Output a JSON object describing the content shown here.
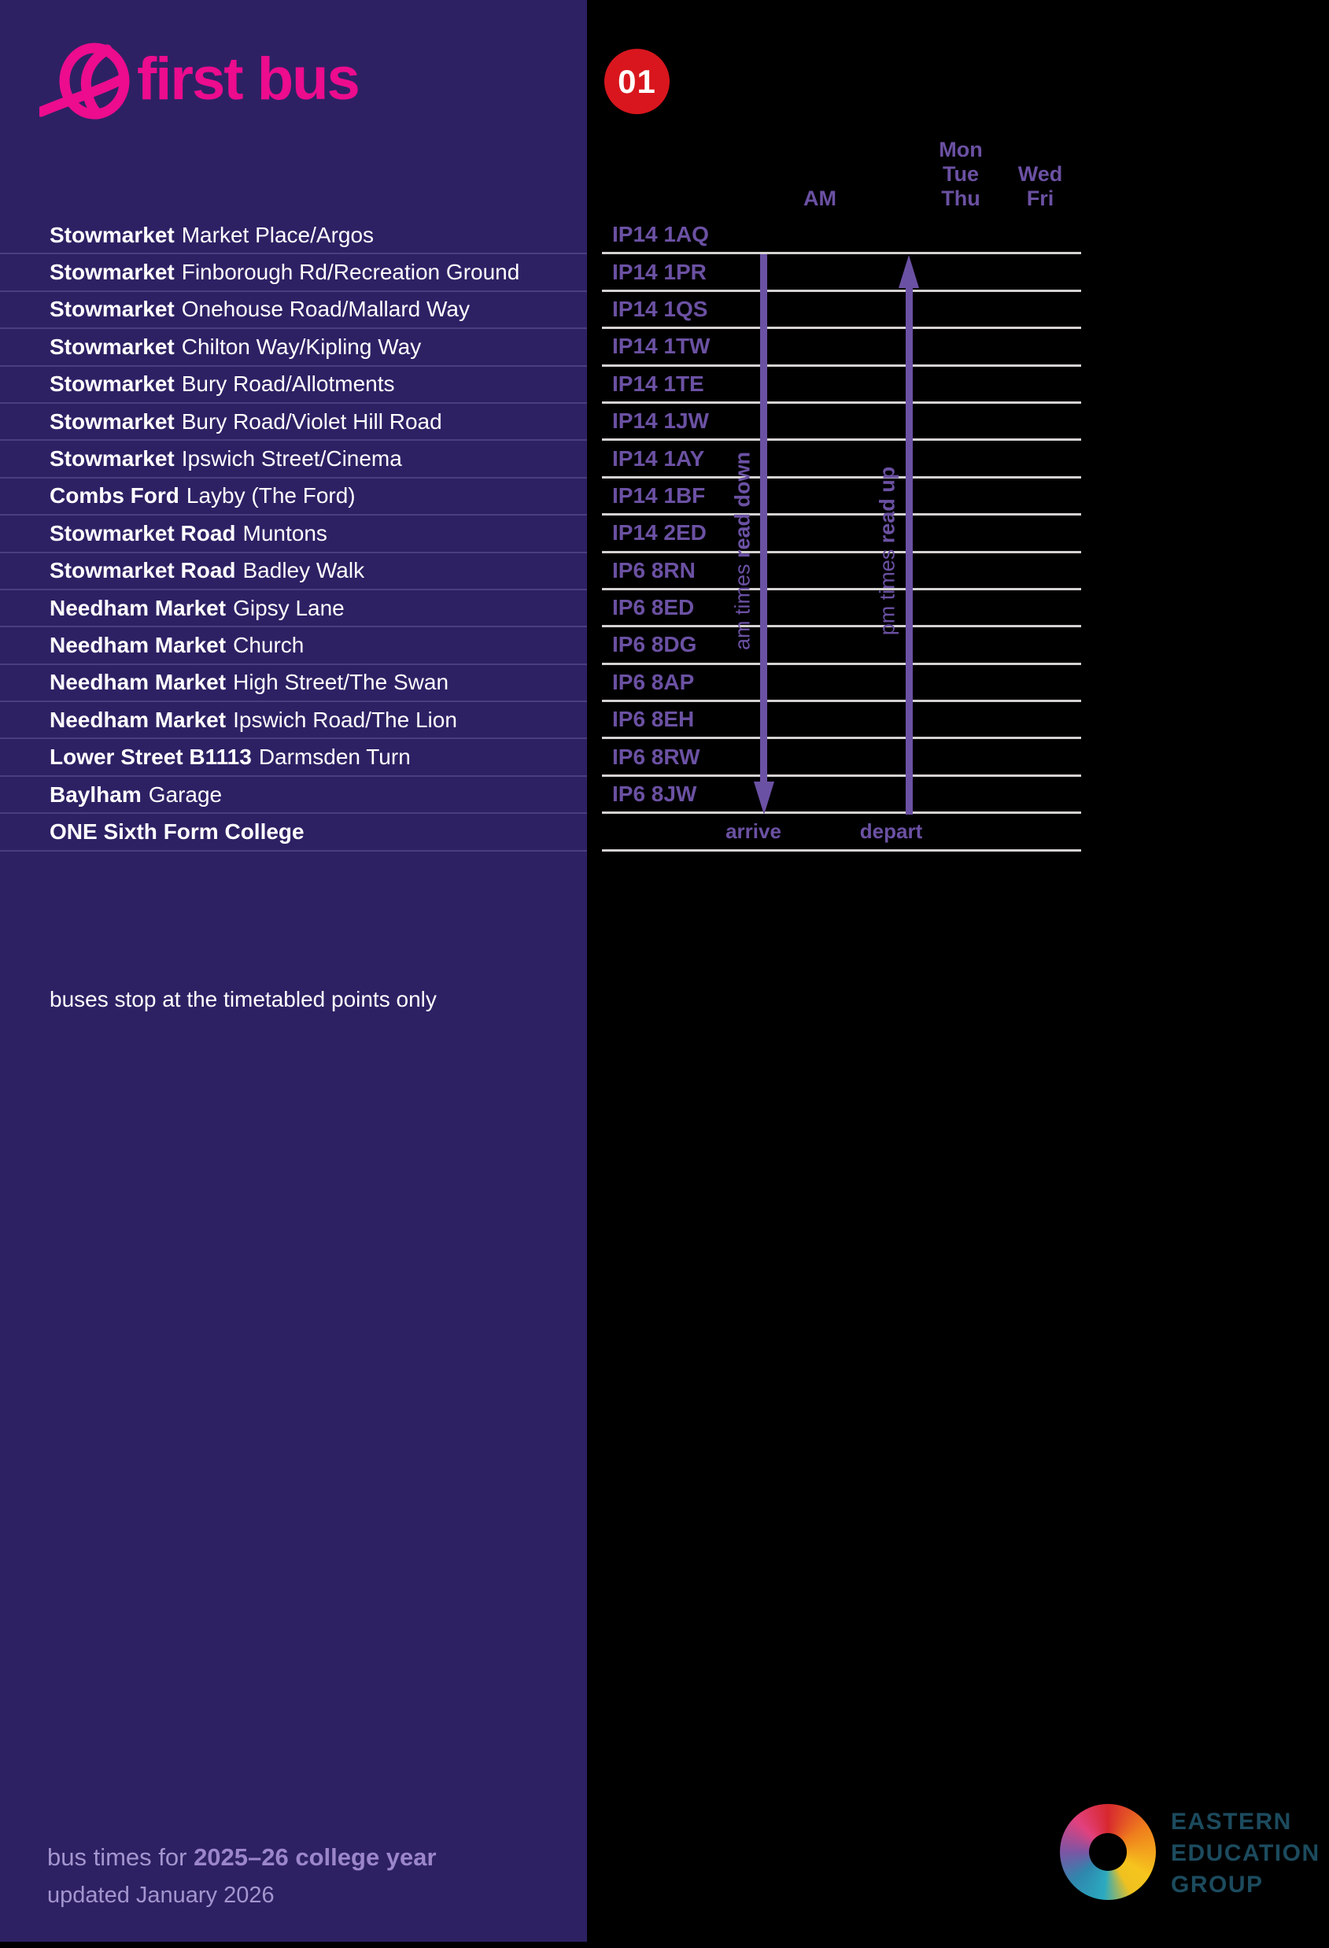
{
  "brand": {
    "name": "first bus"
  },
  "route": {
    "number": "01"
  },
  "header": {
    "am": "AM",
    "day_groups": [
      [
        "Mon",
        "Tue",
        "Thu"
      ],
      [
        "Wed",
        "Fri"
      ]
    ]
  },
  "stops": [
    {
      "bold": "Stowmarket",
      "rest": "Market Place/Argos",
      "postcode": "IP14 1AQ"
    },
    {
      "bold": "Stowmarket",
      "rest": "Finborough Rd/Recreation Ground",
      "postcode": "IP14 1PR"
    },
    {
      "bold": "Stowmarket",
      "rest": "Onehouse Road/Mallard Way",
      "postcode": "IP14 1QS"
    },
    {
      "bold": "Stowmarket",
      "rest": "Chilton Way/Kipling Way",
      "postcode": "IP14 1TW"
    },
    {
      "bold": "Stowmarket",
      "rest": "Bury Road/Allotments",
      "postcode": "IP14 1TE"
    },
    {
      "bold": "Stowmarket",
      "rest": "Bury Road/Violet Hill Road",
      "postcode": "IP14 1JW"
    },
    {
      "bold": "Stowmarket",
      "rest": "Ipswich Street/Cinema",
      "postcode": "IP14 1AY"
    },
    {
      "bold": "Combs Ford",
      "rest": "Layby (The Ford)",
      "postcode": "IP14 1BF"
    },
    {
      "bold": "Stowmarket Road",
      "rest": "Muntons",
      "postcode": "IP14 2ED"
    },
    {
      "bold": "Stowmarket Road",
      "rest": "Badley Walk",
      "postcode": "IP6 8RN"
    },
    {
      "bold": "Needham Market",
      "rest": "Gipsy Lane",
      "postcode": "IP6 8ED"
    },
    {
      "bold": "Needham Market",
      "rest": "Church",
      "postcode": "IP6 8DG"
    },
    {
      "bold": "Needham Market",
      "rest": "High Street/The Swan",
      "postcode": "IP6 8AP"
    },
    {
      "bold": "Needham Market",
      "rest": "Ipswich Road/The Lion",
      "postcode": "IP6 8EH"
    },
    {
      "bold": "Lower Street B1113",
      "rest": "Darmsden Turn",
      "postcode": "IP6 8RW"
    },
    {
      "bold": "Baylham",
      "rest": "Garage",
      "postcode": "IP6 8JW"
    },
    {
      "bold": "ONE Sixth Form College",
      "rest": "",
      "postcode": ""
    }
  ],
  "table": {
    "arrive": "arrive",
    "depart": "depart",
    "am_label_regular": "am times ",
    "am_label_bold": "read down",
    "pm_label_regular": "pm times ",
    "pm_label_bold": "read up"
  },
  "left_panel": {
    "note": "buses stop at the timetabled points only"
  },
  "footer": {
    "line1_regular": "bus times for ",
    "line1_bold": "2025–26 college year",
    "line2": "updated January 2026"
  },
  "eeg": {
    "lines": [
      "EASTERN",
      "EDUCATION",
      "GROUP"
    ]
  },
  "colors": {
    "panel_purple": "#2D2164",
    "brand_pink": "#EC0C8D",
    "route_red": "#D9161E",
    "accent_purple": "#6B51A3",
    "grid_gray": "#D5D2D1",
    "row_separator_purple": "#4A3D80",
    "footer_lavender": "#A495CE",
    "eeg_teal": "#1C4B5E"
  }
}
